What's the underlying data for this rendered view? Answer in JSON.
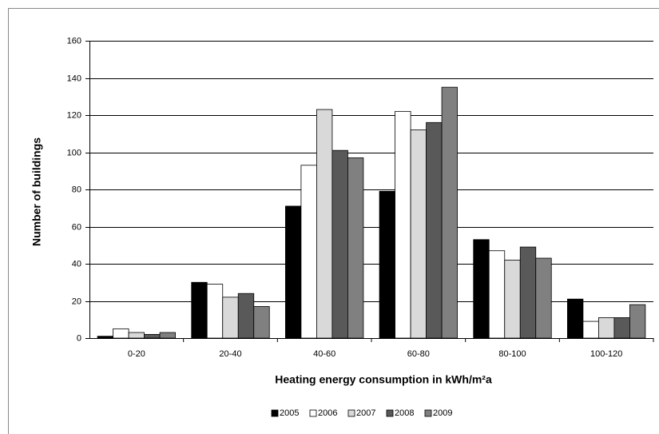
{
  "chart_data": {
    "type": "bar",
    "xlabel": "Heating energy consumption in kWh/m²a",
    "ylabel": "Number of buildings",
    "categories": [
      "0-20",
      "20-40",
      "40-60",
      "60-80",
      "80-100",
      "100-120"
    ],
    "series": [
      {
        "name": "2005",
        "color": "#000000",
        "values": [
          1,
          30,
          71,
          79,
          53,
          21
        ]
      },
      {
        "name": "2006",
        "color": "#ffffff",
        "values": [
          5,
          29,
          93,
          122,
          47,
          9
        ]
      },
      {
        "name": "2007",
        "color": "#d9d9d9",
        "values": [
          3,
          22,
          123,
          112,
          42,
          11
        ]
      },
      {
        "name": "2008",
        "color": "#595959",
        "values": [
          2,
          24,
          101,
          116,
          49,
          11
        ]
      },
      {
        "name": "2009",
        "color": "#808080",
        "values": [
          3,
          17,
          97,
          135,
          43,
          18
        ]
      }
    ],
    "ylim": [
      0,
      160
    ],
    "yticks": [
      0,
      20,
      40,
      60,
      80,
      100,
      120,
      140,
      160
    ],
    "grid": true,
    "legend": "bottom"
  }
}
